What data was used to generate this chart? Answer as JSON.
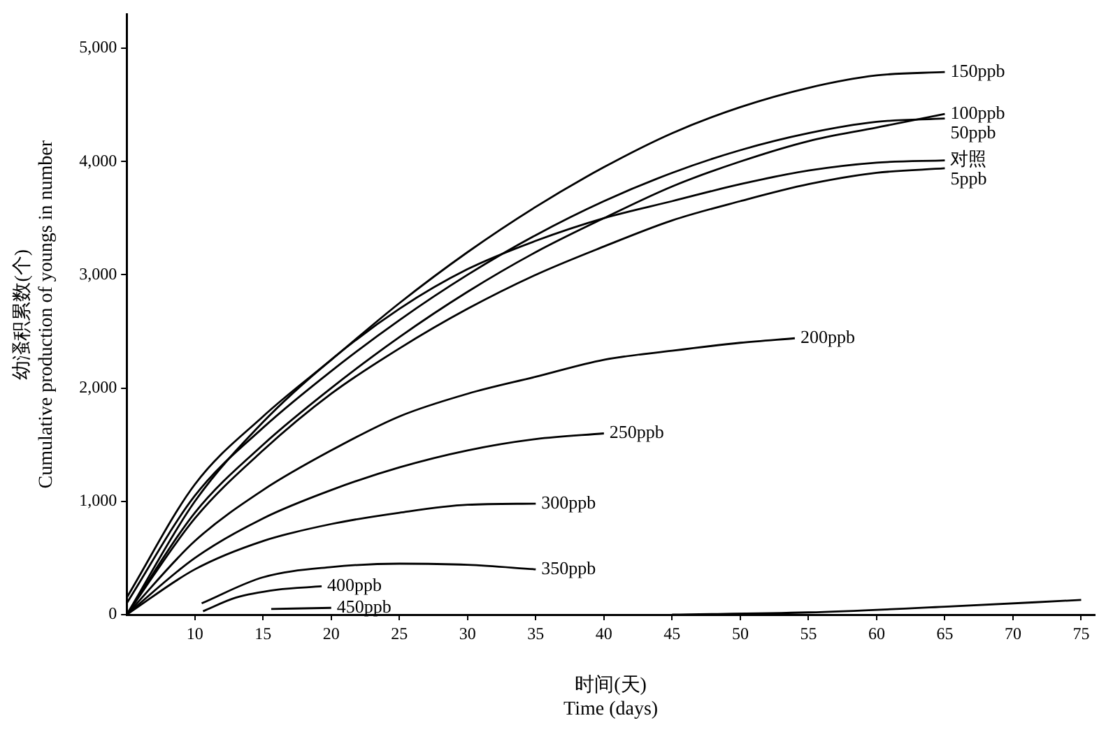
{
  "chart_data": {
    "type": "line",
    "xlabel": "时间(天)\nTime (days)",
    "ylabel": "幼溞积累数(个)\nCumulative production of youngs in number",
    "xlim": [
      5,
      76
    ],
    "xticks": [
      10,
      15,
      20,
      25,
      30,
      35,
      40,
      45,
      50,
      55,
      60,
      65,
      70,
      75
    ],
    "ylim": [
      0,
      5300
    ],
    "yticks": [
      0,
      {
        "value": 1000,
        "label": "1,000"
      },
      {
        "value": 2000,
        "label": "2,000"
      },
      {
        "value": 3000,
        "label": "3,000"
      },
      {
        "value": 4000,
        "label": "4,000"
      },
      {
        "value": 5000,
        "label": "5,000"
      }
    ],
    "grid": false,
    "legend": false,
    "marker": "none",
    "line_style": "solid",
    "series": [
      {
        "name": "150ppb",
        "color": "#000000",
        "x": [
          5,
          10,
          15,
          20,
          25,
          30,
          35,
          40,
          45,
          50,
          55,
          60,
          65
        ],
        "values": [
          150,
          1150,
          1750,
          2250,
          2750,
          3200,
          3600,
          3950,
          4250,
          4480,
          4650,
          4760,
          4790
        ]
      },
      {
        "name": "50ppb",
        "color": "#000000",
        "x": [
          5,
          10,
          15,
          20,
          25,
          30,
          35,
          40,
          45,
          50,
          55,
          60,
          65
        ],
        "values": [
          100,
          1050,
          1650,
          2150,
          2600,
          3000,
          3350,
          3650,
          3900,
          4100,
          4250,
          4350,
          4380
        ]
      },
      {
        "name": "100ppb",
        "color": "#000000",
        "x": [
          5,
          10,
          15,
          20,
          25,
          30,
          35,
          40,
          45,
          50,
          55,
          60,
          65
        ],
        "values": [
          0,
          900,
          1500,
          2000,
          2450,
          2850,
          3200,
          3500,
          3780,
          4000,
          4180,
          4300,
          4420
        ]
      },
      {
        "name": "对照",
        "color": "#000000",
        "x": [
          5,
          10,
          15,
          20,
          25,
          30,
          35,
          40,
          45,
          50,
          55,
          60,
          65
        ],
        "values": [
          0,
          1000,
          1700,
          2250,
          2700,
          3050,
          3300,
          3500,
          3650,
          3800,
          3920,
          3990,
          4010
        ]
      },
      {
        "name": "5ppb",
        "color": "#000000",
        "x": [
          5,
          10,
          15,
          20,
          25,
          30,
          35,
          40,
          45,
          50,
          55,
          60,
          65
        ],
        "values": [
          0,
          850,
          1450,
          1950,
          2350,
          2700,
          3000,
          3250,
          3480,
          3650,
          3800,
          3900,
          3940
        ]
      },
      {
        "name": "200ppb",
        "color": "#000000",
        "x": [
          5,
          10,
          15,
          20,
          25,
          30,
          35,
          40,
          45,
          50,
          54
        ],
        "values": [
          0,
          650,
          1100,
          1450,
          1750,
          1950,
          2100,
          2250,
          2330,
          2400,
          2440
        ]
      },
      {
        "name": "250ppb",
        "color": "#000000",
        "x": [
          5,
          10,
          15,
          20,
          25,
          30,
          35,
          40
        ],
        "values": [
          0,
          500,
          850,
          1100,
          1300,
          1450,
          1550,
          1600
        ]
      },
      {
        "name": "300ppb",
        "color": "#000000",
        "x": [
          5,
          10,
          15,
          20,
          25,
          30,
          35
        ],
        "values": [
          0,
          400,
          650,
          800,
          900,
          970,
          980
        ]
      },
      {
        "name": "350ppb",
        "color": "#000000",
        "x": [
          10.5,
          15,
          20,
          25,
          30,
          35
        ],
        "values": [
          100,
          330,
          420,
          450,
          440,
          400
        ]
      },
      {
        "name": "400ppb",
        "color": "#000000",
        "x": [
          10.6,
          13,
          16,
          19.3
        ],
        "values": [
          30,
          150,
          220,
          250
        ]
      },
      {
        "name": "450ppb",
        "color": "#000000",
        "x": [
          15.6,
          20
        ],
        "values": [
          50,
          60
        ]
      },
      {
        "color": "#000000",
        "x": [
          45,
          55,
          65,
          75
        ],
        "values": [
          0,
          20,
          70,
          130
        ]
      }
    ]
  }
}
